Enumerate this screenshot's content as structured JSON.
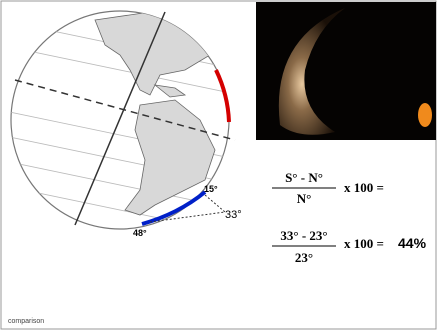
{
  "globe": {
    "labels": {
      "north": "15°",
      "difference": "33°",
      "south": "48°"
    }
  },
  "formula": {
    "numerator": "S° - N°",
    "denominator": "N°",
    "multiplier": "x 100 ="
  },
  "example": {
    "numerator": "33° - 23°",
    "denominator": "23°",
    "multiplier": "x 100 =",
    "result": "44%"
  },
  "footer": "comparison"
}
